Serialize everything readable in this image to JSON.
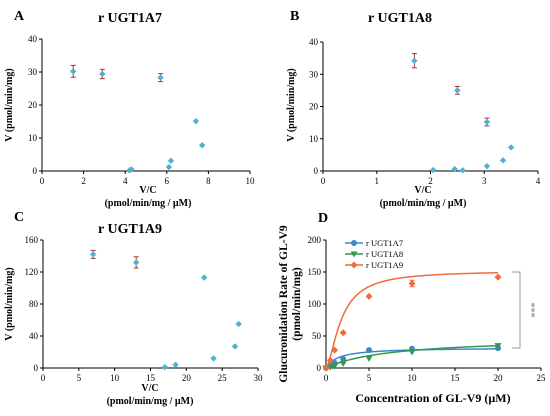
{
  "figure": {
    "panels": {
      "A": {
        "letter": "A",
        "title": "r UGT1A7"
      },
      "B": {
        "letter": "B",
        "title": "r UGT1A8"
      },
      "C": {
        "letter": "C",
        "title": "r UGT1A9"
      },
      "D": {
        "letter": "D"
      }
    }
  },
  "colors": {
    "scatter_point": "#4fb3cf",
    "error_bar": "#b03030",
    "rUGT1A7": "#3d88c8",
    "rUGT1A8": "#2e9a4a",
    "rUGT1A9": "#ef6c3c",
    "significance": "#999999"
  },
  "chart_data": [
    {
      "id": "A",
      "type": "scatter",
      "title": "r UGT1A7",
      "xlabel": "V/C",
      "xlabel_units": "(pmol/min/mg / µM)",
      "ylabel": "V (pmol/min/mg)",
      "xlim": [
        0,
        10
      ],
      "ylim": [
        0,
        40
      ],
      "xticks": [
        0,
        2,
        4,
        6,
        8,
        10
      ],
      "yticks": [
        0,
        10,
        20,
        30,
        40
      ],
      "points": [
        {
          "x": 1.5,
          "y": 30.2,
          "err": 1.8
        },
        {
          "x": 2.9,
          "y": 29.4,
          "err": 1.4
        },
        {
          "x": 5.7,
          "y": 28.3,
          "err": 1.2
        },
        {
          "x": 7.4,
          "y": 15.1
        },
        {
          "x": 7.7,
          "y": 7.8
        },
        {
          "x": 6.2,
          "y": 3.1
        },
        {
          "x": 6.1,
          "y": 1.2
        },
        {
          "x": 4.3,
          "y": 0.5
        },
        {
          "x": 4.2,
          "y": 0.2
        }
      ]
    },
    {
      "id": "B",
      "type": "scatter",
      "title": "r UGT1A8",
      "xlabel": "V/C",
      "xlabel_units": "(pmol/min/mg / µM)",
      "ylabel": "V (pmol/min/mg)",
      "xlim": [
        0,
        4
      ],
      "ylim": [
        0,
        40
      ],
      "xticks": [
        0,
        1,
        2,
        3,
        4
      ],
      "yticks": [
        0,
        10,
        20,
        30,
        40
      ],
      "points": [
        {
          "x": 1.7,
          "y": 34.2,
          "err": 2.2
        },
        {
          "x": 2.5,
          "y": 25.0,
          "err": 1.2
        },
        {
          "x": 3.05,
          "y": 15.2,
          "err": 1.2
        },
        {
          "x": 3.5,
          "y": 7.3
        },
        {
          "x": 3.35,
          "y": 3.3
        },
        {
          "x": 3.05,
          "y": 1.5
        },
        {
          "x": 2.45,
          "y": 0.6
        },
        {
          "x": 2.05,
          "y": 0.3
        },
        {
          "x": 2.6,
          "y": 0.2
        }
      ]
    },
    {
      "id": "C",
      "type": "scatter",
      "title": "r UGT1A9",
      "xlabel": "V/C",
      "xlabel_units": "(pmol/min/mg / µM)",
      "ylabel": "V (pmol/min/mg)",
      "xlim": [
        0,
        30
      ],
      "ylim": [
        0,
        160
      ],
      "xticks": [
        0,
        5,
        10,
        15,
        20,
        25,
        30
      ],
      "yticks": [
        0,
        40,
        80,
        120,
        160
      ],
      "points": [
        {
          "x": 7.0,
          "y": 142,
          "err": 5
        },
        {
          "x": 13.0,
          "y": 132,
          "err": 7
        },
        {
          "x": 22.5,
          "y": 113
        },
        {
          "x": 27.3,
          "y": 55
        },
        {
          "x": 26.8,
          "y": 27
        },
        {
          "x": 23.8,
          "y": 12
        },
        {
          "x": 18.5,
          "y": 4
        },
        {
          "x": 17.0,
          "y": 1
        }
      ]
    },
    {
      "id": "D",
      "type": "line",
      "ylabel_lines": [
        "Glucuronidation Rate of GL-V9",
        "(pmol/min/mg)"
      ],
      "xlabel": "Concentration of GL-V9 (µM)",
      "xlim": [
        0,
        25
      ],
      "ylim": [
        0,
        200
      ],
      "xticks": [
        0,
        5,
        10,
        15,
        20,
        25
      ],
      "yticks": [
        0,
        50,
        100,
        150,
        200
      ],
      "legend_position": "top-left",
      "significance": "***",
      "series": [
        {
          "name": "r UGT1A7",
          "marker": "circle",
          "x": [
            0,
            0.5,
            1,
            2,
            5,
            10,
            20
          ],
          "y": [
            0,
            4,
            8,
            14,
            28,
            30,
            31
          ],
          "vmax": 32,
          "km": 1.4
        },
        {
          "name": "r UGT1A8",
          "marker": "triangle-down",
          "x": [
            0,
            0.5,
            1,
            2,
            5,
            10,
            20
          ],
          "y": [
            0,
            1.5,
            3,
            7,
            15,
            25,
            35
          ],
          "vmax": 48,
          "km": 7.5
        },
        {
          "name": "r UGT1A9",
          "marker": "diamond",
          "x": [
            0,
            0.5,
            1,
            2,
            5,
            10,
            20
          ],
          "y": [
            0,
            12,
            28,
            55,
            112,
            132,
            142
          ],
          "yerr": [
            0,
            0,
            0,
            0,
            0,
            5,
            0
          ],
          "vmax": 152,
          "km": 1.8,
          "hill": 1.6
        }
      ]
    }
  ]
}
